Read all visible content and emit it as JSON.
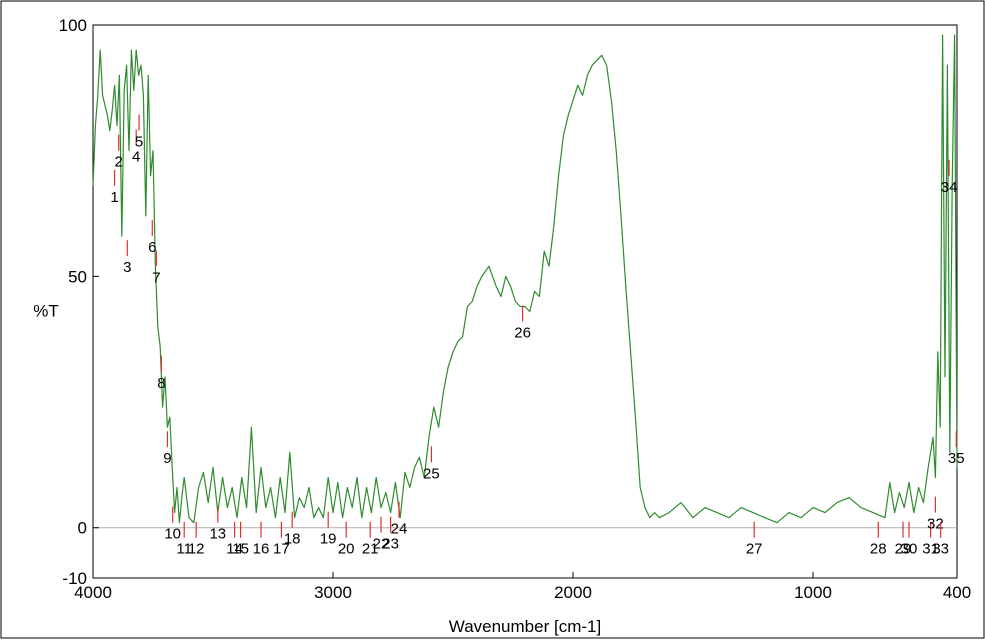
{
  "chart_data": {
    "type": "line",
    "title": "",
    "xlabel": "Wavenumber [cm-1]",
    "ylabel": "%T",
    "xlim": [
      4000,
      400
    ],
    "ylim": [
      -10,
      100
    ],
    "x_reversed": true,
    "x_ticks": [
      4000,
      3000,
      2000,
      1000,
      400
    ],
    "y_ticks": [
      100,
      50,
      0,
      -10
    ],
    "x_tick_labels": [
      "4000",
      "3000",
      "2000",
      "1000",
      "400"
    ],
    "y_tick_labels": [
      "100",
      "50",
      "0",
      "-10"
    ],
    "grid": false,
    "baseline_at": 0,
    "colors": {
      "line": "#2e8b2e",
      "marker": "#e03030",
      "baseline": "#b0b0b0",
      "frame": "#000000"
    },
    "series": [
      {
        "x": [
          4000,
          3990,
          3980,
          3970,
          3960,
          3950,
          3940,
          3930,
          3920,
          3910,
          3900,
          3890,
          3880,
          3870,
          3860,
          3850,
          3840,
          3830,
          3820,
          3810,
          3800,
          3790,
          3780,
          3770,
          3760,
          3750,
          3740,
          3730,
          3720,
          3710,
          3700,
          3690,
          3680,
          3670,
          3660,
          3650,
          3640,
          3630,
          3620,
          3600,
          3580,
          3560,
          3540,
          3520,
          3500,
          3480,
          3460,
          3440,
          3420,
          3400,
          3380,
          3360,
          3340,
          3320,
          3300,
          3280,
          3260,
          3240,
          3220,
          3200,
          3180,
          3160,
          3140,
          3120,
          3100,
          3080,
          3060,
          3040,
          3020,
          3000,
          2980,
          2960,
          2940,
          2920,
          2900,
          2880,
          2860,
          2840,
          2820,
          2800,
          2780,
          2760,
          2740,
          2720,
          2700,
          2680,
          2660,
          2640,
          2620,
          2600,
          2580,
          2560,
          2540,
          2520,
          2500,
          2480,
          2460,
          2440,
          2420,
          2400,
          2380,
          2350,
          2320,
          2300,
          2280,
          2260,
          2240,
          2220,
          2200,
          2180,
          2160,
          2140,
          2120,
          2100,
          2080,
          2060,
          2040,
          2020,
          2000,
          1980,
          1960,
          1940,
          1920,
          1900,
          1880,
          1860,
          1840,
          1820,
          1800,
          1780,
          1760,
          1740,
          1720,
          1700,
          1680,
          1660,
          1640,
          1600,
          1550,
          1500,
          1450,
          1400,
          1350,
          1300,
          1250,
          1200,
          1150,
          1100,
          1050,
          1000,
          950,
          900,
          850,
          800,
          750,
          700,
          680,
          660,
          640,
          620,
          600,
          580,
          560,
          540,
          520,
          500,
          490,
          480,
          470,
          460,
          450,
          440,
          430,
          420,
          410,
          400
        ],
        "y": [
          68,
          80,
          86,
          95,
          86,
          84,
          82,
          79,
          83,
          88,
          80,
          90,
          58,
          87,
          92,
          75,
          95,
          87,
          95,
          90,
          92,
          86,
          62,
          90,
          70,
          75,
          52,
          40,
          36,
          24,
          30,
          20,
          22,
          12,
          3,
          8,
          1,
          6,
          10,
          2,
          1,
          8,
          11,
          5,
          12,
          3,
          10,
          4,
          8,
          2,
          10,
          4,
          20,
          3,
          12,
          4,
          8,
          2,
          10,
          3,
          15,
          2,
          6,
          4,
          8,
          2,
          4,
          2,
          10,
          3,
          9,
          2,
          8,
          4,
          10,
          2,
          8,
          3,
          10,
          4,
          7,
          3,
          9,
          2,
          11,
          8,
          12,
          14,
          10,
          18,
          24,
          20,
          27,
          32,
          35,
          37,
          38,
          44,
          45,
          48,
          50,
          52,
          48,
          46,
          50,
          48,
          45,
          44,
          44,
          43,
          47,
          46,
          55,
          52,
          60,
          70,
          78,
          82,
          85,
          88,
          86,
          90,
          92,
          93,
          94,
          92,
          85,
          75,
          62,
          48,
          35,
          22,
          8,
          4,
          2,
          3,
          2,
          3,
          5,
          2,
          4,
          3,
          2,
          4,
          3,
          2,
          1,
          3,
          2,
          4,
          3,
          5,
          6,
          4,
          3,
          2,
          9,
          3,
          7,
          4,
          9,
          3,
          8,
          5,
          12,
          18,
          10,
          35,
          20,
          98,
          30,
          92,
          15,
          68,
          98,
          12
        ]
      }
    ],
    "peaks": [
      {
        "label": "1",
        "x": 3910,
        "y": 70
      },
      {
        "label": "2",
        "x": 3893,
        "y": 77
      },
      {
        "label": "3",
        "x": 3857,
        "y": 56
      },
      {
        "label": "4",
        "x": 3820,
        "y": 78
      },
      {
        "label": "5",
        "x": 3808,
        "y": 81
      },
      {
        "label": "6",
        "x": 3753,
        "y": 60
      },
      {
        "label": "7",
        "x": 3736,
        "y": 54
      },
      {
        "label": "8",
        "x": 3715,
        "y": 33
      },
      {
        "label": "9",
        "x": 3690,
        "y": 18
      },
      {
        "label": "10",
        "x": 3668,
        "y": 3
      },
      {
        "label": "11",
        "x": 3620,
        "y": 0
      },
      {
        "label": "12",
        "x": 3570,
        "y": 0
      },
      {
        "label": "13",
        "x": 3480,
        "y": 3
      },
      {
        "label": "14",
        "x": 3410,
        "y": 0
      },
      {
        "label": "15",
        "x": 3385,
        "y": 0
      },
      {
        "label": "16",
        "x": 3300,
        "y": 0
      },
      {
        "label": "17",
        "x": 3215,
        "y": 0
      },
      {
        "label": "18",
        "x": 3170,
        "y": 2
      },
      {
        "label": "19",
        "x": 3020,
        "y": 2
      },
      {
        "label": "20",
        "x": 2945,
        "y": 0
      },
      {
        "label": "21",
        "x": 2845,
        "y": 0
      },
      {
        "label": "22",
        "x": 2800,
        "y": 1
      },
      {
        "label": "23",
        "x": 2760,
        "y": 1
      },
      {
        "label": "24",
        "x": 2725,
        "y": 4
      },
      {
        "label": "25",
        "x": 2590,
        "y": 15
      },
      {
        "label": "26",
        "x": 2210,
        "y": 43
      },
      {
        "label": "27",
        "x": 1245,
        "y": 0
      },
      {
        "label": "28",
        "x": 728,
        "y": 0
      },
      {
        "label": "29",
        "x": 625,
        "y": 0
      },
      {
        "label": "30",
        "x": 600,
        "y": 0
      },
      {
        "label": "31",
        "x": 510,
        "y": 0
      },
      {
        "label": "32",
        "x": 490,
        "y": 5
      },
      {
        "label": "33",
        "x": 468,
        "y": 0
      },
      {
        "label": "34",
        "x": 433,
        "y": 72
      },
      {
        "label": "35",
        "x": 403,
        "y": 18
      }
    ]
  }
}
